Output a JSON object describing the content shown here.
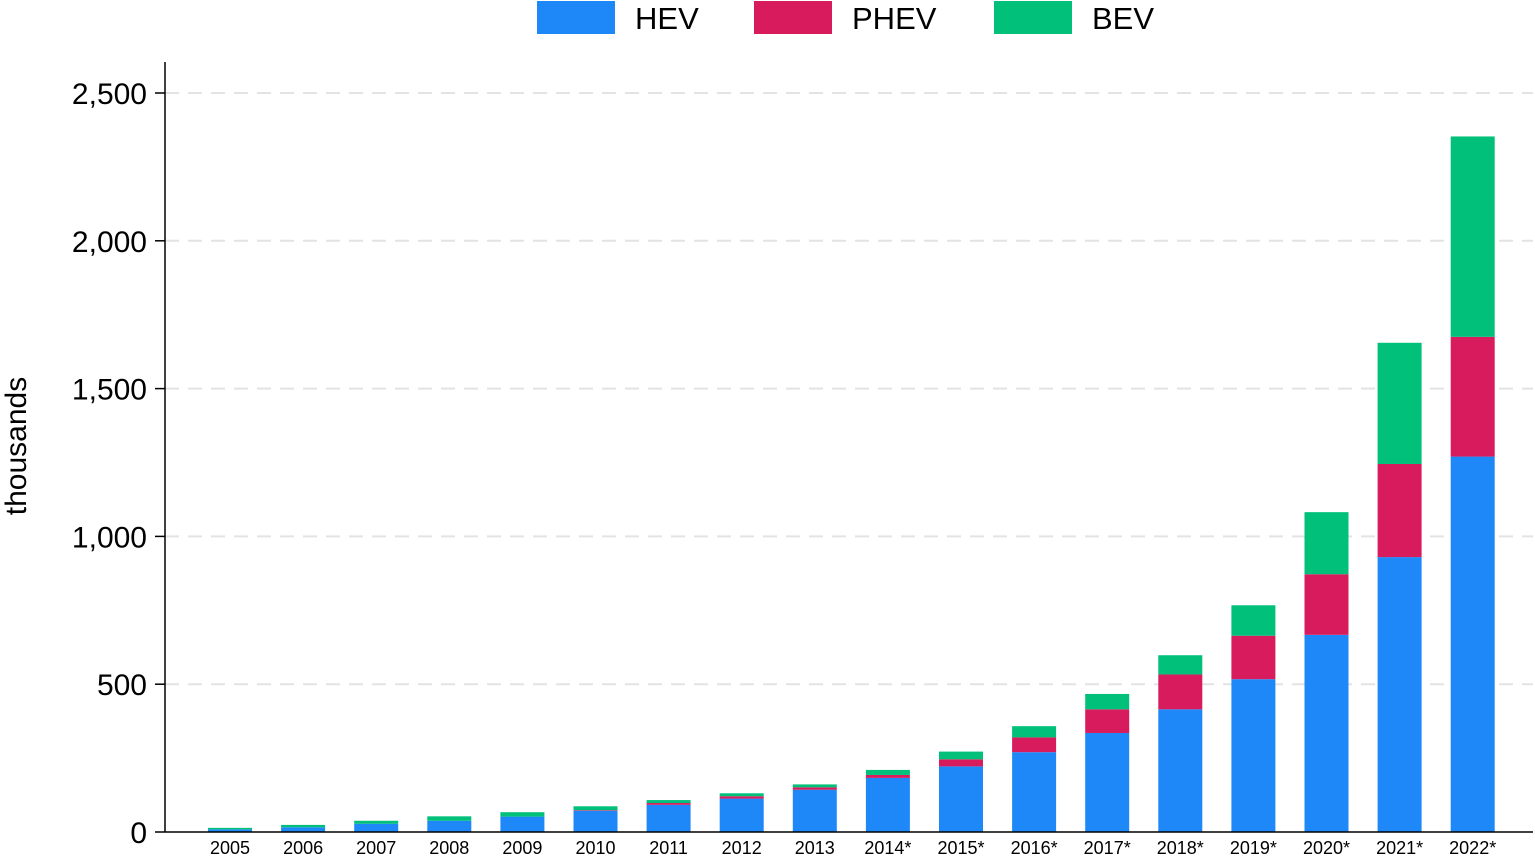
{
  "chart_data": {
    "type": "bar",
    "stacked": true,
    "title": "",
    "xlabel": "",
    "ylabel": "thousands",
    "ylim": [
      0,
      2600
    ],
    "yticks": [
      0,
      500,
      1000,
      1500,
      2000,
      2500
    ],
    "ytick_labels": [
      "0",
      "500",
      "1,000",
      "1,500",
      "2,000",
      "2,500"
    ],
    "grid": "horizontal dashed",
    "legend_position": "top-center",
    "categories": [
      "2005",
      "2006",
      "2007",
      "2008",
      "2009",
      "2010",
      "2011",
      "2012",
      "2013",
      "2014*",
      "2015*",
      "2016*",
      "2017*",
      "2018*",
      "2019*",
      "2020*",
      "2021*",
      "2022*"
    ],
    "series": [
      {
        "name": "HEV",
        "color": "#1E88F8",
        "values": [
          9,
          16,
          28,
          38,
          52,
          72,
          92,
          113,
          143,
          183,
          222,
          270,
          335,
          415,
          517,
          667,
          930,
          1270
        ]
      },
      {
        "name": "PHEV",
        "color": "#D81B5C",
        "values": [
          0,
          0,
          0,
          0,
          0,
          2,
          6,
          8,
          8,
          10,
          24,
          50,
          80,
          118,
          147,
          205,
          315,
          405
        ]
      },
      {
        "name": "BEV",
        "color": "#00C07A",
        "values": [
          5,
          8,
          10,
          15,
          15,
          13,
          10,
          10,
          10,
          17,
          26,
          38,
          52,
          65,
          103,
          210,
          410,
          678
        ]
      }
    ]
  }
}
